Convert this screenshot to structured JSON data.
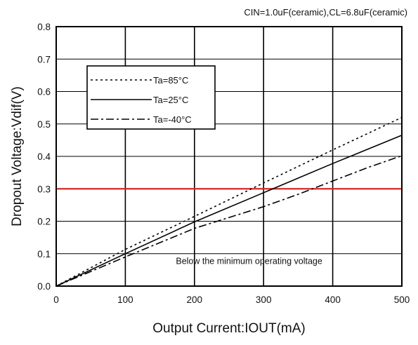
{
  "chart_data": {
    "type": "line",
    "subtitle": "CIN=1.0uF(ceramic),CL=6.8uF(ceramic)",
    "xlabel": "Output Current:IOUT(mA)",
    "ylabel": "Dropout Voltage:Vdif(V)",
    "xlim": [
      0,
      500
    ],
    "ylim": [
      0,
      0.8
    ],
    "xticks": [
      "0",
      "100",
      "200",
      "300",
      "400",
      "500"
    ],
    "yticks": [
      "0.0",
      "0.1",
      "0.2",
      "0.3",
      "0.4",
      "0.5",
      "0.6",
      "0.7",
      "0.8"
    ],
    "grid": true,
    "legend_position": "top-left",
    "series": [
      {
        "name": "Ta=85°C",
        "style": "dotted",
        "color": "#000000",
        "x": [
          0,
          100,
          200,
          300,
          400,
          500
        ],
        "y": [
          0,
          0.113,
          0.215,
          0.318,
          0.42,
          0.52
        ]
      },
      {
        "name": "Ta=25°C",
        "style": "solid",
        "color": "#000000",
        "x": [
          0,
          100,
          200,
          300,
          400,
          500
        ],
        "y": [
          0,
          0.1,
          0.198,
          0.288,
          0.378,
          0.465
        ]
      },
      {
        "name": "Ta=-40°C",
        "style": "dashdot",
        "color": "#000000",
        "x": [
          0,
          100,
          200,
          300,
          350,
          450,
          500
        ],
        "y": [
          0,
          0.09,
          0.178,
          0.245,
          0.283,
          0.365,
          0.402
        ]
      }
    ],
    "reference_line": {
      "y": 0.3,
      "color": "#d62828"
    },
    "annotation": {
      "text": "Below the minimum operating voltage",
      "x": 165,
      "y": 0.088
    }
  }
}
